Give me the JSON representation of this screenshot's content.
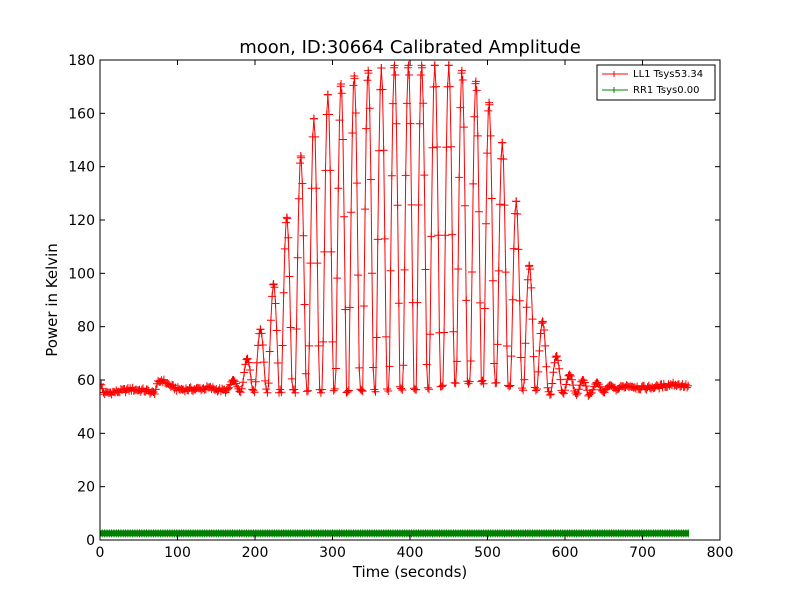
{
  "chart_data": {
    "type": "line",
    "title": "moon, ID:30664 Calibrated Amplitude",
    "xlabel": "Time (seconds)",
    "ylabel": "Power in Kelvin",
    "xlim": [
      0,
      800
    ],
    "ylim": [
      0,
      180
    ],
    "xticks": [
      "0",
      "100",
      "200",
      "300",
      "400",
      "500",
      "600",
      "700",
      "800"
    ],
    "yticks": [
      "0",
      "20",
      "40",
      "60",
      "80",
      "100",
      "120",
      "140",
      "160",
      "180"
    ],
    "grid": false,
    "legend_position": "top-right",
    "marker": "plus",
    "baseline": {
      "x": [
        0,
        5,
        20,
        40,
        60,
        70,
        75,
        80,
        90,
        100,
        120,
        140,
        160,
        180,
        200,
        220,
        240,
        260,
        280,
        300,
        320,
        340,
        360,
        380,
        400,
        420,
        440,
        460,
        480,
        500,
        520,
        540,
        560,
        580,
        600,
        620,
        640,
        660,
        680,
        700,
        720,
        740,
        760
      ],
      "y": [
        59,
        55,
        55.5,
        56.5,
        56,
        55,
        59,
        60,
        58,
        56.5,
        56.5,
        57,
        56,
        56,
        55.5,
        56,
        55.5,
        56,
        56,
        56,
        56,
        56,
        56,
        56.5,
        57,
        57,
        58,
        58.5,
        59,
        59,
        58,
        57,
        56.5,
        55,
        55,
        54.5,
        55,
        56,
        58,
        57,
        57.5,
        58.5,
        57.5
      ]
    },
    "peaks": {
      "x": [
        172,
        190,
        207,
        224,
        241,
        259,
        276,
        294,
        311,
        328,
        346,
        363,
        380,
        398,
        415,
        432,
        450,
        467,
        485,
        502,
        519,
        537,
        554,
        571,
        589,
        606,
        623,
        641,
        658
      ],
      "y": [
        60,
        68,
        79,
        96,
        121,
        144,
        158,
        167,
        171,
        174,
        176,
        177,
        178,
        178,
        178,
        178,
        178,
        176,
        172,
        164,
        149,
        127,
        103,
        82,
        69,
        62,
        60,
        59,
        58
      ]
    },
    "series": [
      {
        "name": "LL1 Tsys53.34",
        "color": "#ff0000"
      },
      {
        "name": "RR1 Tsys0.00",
        "color": "#008000",
        "x": [
          0,
          760
        ],
        "y": [
          2.5,
          2.5
        ]
      }
    ]
  }
}
